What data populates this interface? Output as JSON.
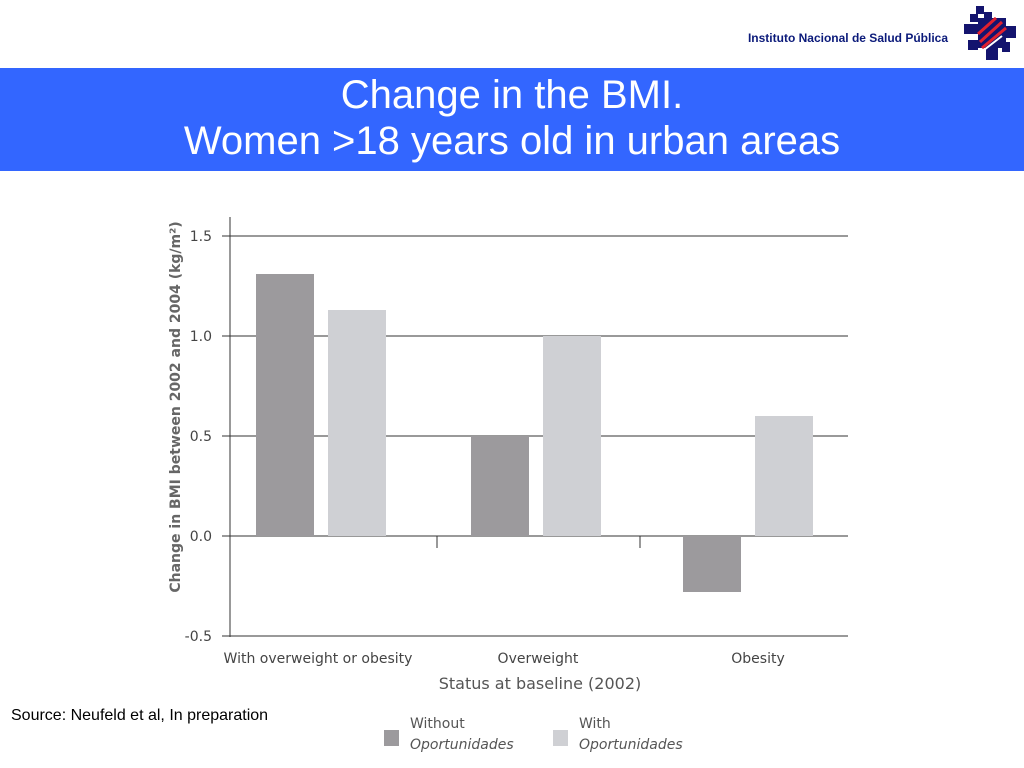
{
  "header": {
    "institute": "Instituto Nacional de Salud Pública",
    "logo_icon": "cross-logo-icon"
  },
  "title": {
    "line1": "Change in the BMI.",
    "line2": "Women >18 years old in urban areas"
  },
  "source": "Source:  Neufeld et al, In preparation",
  "legend": {
    "items": [
      {
        "line1": "Without",
        "line2": "Oportunidades",
        "color": "#9c9a9d"
      },
      {
        "line1": "With",
        "line2": "Oportunidades",
        "color": "#cfd0d4"
      }
    ]
  },
  "chart_data": {
    "type": "bar",
    "categories": [
      "With overweight or obesity",
      "Overweight",
      "Obesity"
    ],
    "series": [
      {
        "name": "Without Oportunidades",
        "values": [
          1.31,
          0.5,
          -0.28
        ],
        "color": "#9c9a9d"
      },
      {
        "name": "With Oportunidades",
        "values": [
          1.13,
          1.0,
          0.6
        ],
        "color": "#cfd0d4"
      }
    ],
    "xlabel": "Status at baseline (2002)",
    "ylabel": "Change in BMI between 2002 and 2004 (kg/m²)",
    "ylim": [
      -0.5,
      1.5
    ],
    "yticks": [
      "1.5",
      "1.0",
      "0.5",
      "0.0",
      "-0.5"
    ],
    "ytick_values": [
      1.5,
      1.0,
      0.5,
      0.0,
      -0.5
    ],
    "grid": true,
    "legend_position": "bottom"
  }
}
